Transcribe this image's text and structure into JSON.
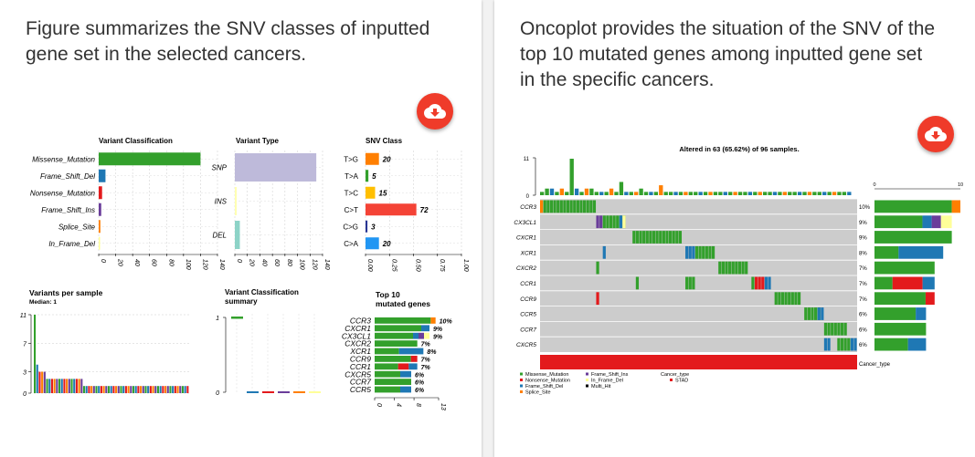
{
  "left_card": {
    "description": "Figure summarizes the SNV classes of inputted gene set in the selected cancers.",
    "download_icon": "cloud-download-icon",
    "summary": {
      "variant_classification": {
        "title": "Variant Classification",
        "categories": [
          "Missense_Mutation",
          "Frame_Shift_Del",
          "Nonsense_Mutation",
          "Frame_Shift_Ins",
          "Splice_Site",
          "In_Frame_Del"
        ],
        "values": [
          120,
          8,
          4,
          3,
          2,
          1
        ],
        "colors": [
          "#33a02c",
          "#1f78b4",
          "#e31a1c",
          "#6a3d9a",
          "#ff7f00",
          "#ffff99"
        ],
        "ticks": [
          "0",
          "20",
          "40",
          "60",
          "80",
          "100",
          "120",
          "140"
        ]
      },
      "variant_type": {
        "title": "Variant Type",
        "categories": [
          "SNP",
          "INS",
          "DEL"
        ],
        "values": [
          130,
          3,
          8
        ],
        "colors": [
          "#bebada",
          "#ffffb3",
          "#8dd3c7"
        ],
        "ticks": [
          "0",
          "20",
          "40",
          "60",
          "80",
          "100",
          "120",
          "140"
        ]
      },
      "snv_class": {
        "title": "SNV Class",
        "categories": [
          "T>G",
          "T>A",
          "T>C",
          "C>T",
          "C>G",
          "C>A"
        ],
        "values": [
          20,
          5,
          15,
          72,
          3,
          20
        ],
        "fractions": [
          0.14,
          0.03,
          0.1,
          0.53,
          0.02,
          0.14
        ],
        "colors": [
          "#ff7f00",
          "#33a02c",
          "#ffbf00",
          "#f44336",
          "#283593",
          "#2196f3"
        ],
        "ticks": [
          "0.00",
          "0.25",
          "0.50",
          "0.75",
          "1.00"
        ]
      },
      "variants_per_sample": {
        "title": "Variants per sample",
        "subtitle": "Median: 1",
        "ticks": [
          "0",
          "3",
          "7",
          "11"
        ],
        "values": [
          11,
          4,
          3,
          3,
          3,
          2,
          2,
          2,
          2,
          2,
          2,
          2,
          2,
          2,
          2,
          2,
          2,
          2,
          2,
          2,
          1,
          1,
          1,
          1,
          1,
          1,
          1,
          1,
          1,
          1,
          1,
          1,
          1,
          1,
          1,
          1,
          1,
          1,
          1,
          1,
          1,
          1,
          1,
          1,
          1,
          1,
          1,
          1,
          1,
          1,
          1,
          1,
          1,
          1,
          1,
          1,
          1,
          1,
          1,
          1,
          1,
          1,
          1
        ]
      },
      "variant_classification_summary": {
        "title_line1": "Variant Classification",
        "title_line2": "summary",
        "ticks": [
          "0",
          "1"
        ],
        "values": [
          1,
          0,
          0,
          0,
          0,
          0
        ],
        "colors": [
          "#33a02c",
          "#1f78b4",
          "#e31a1c",
          "#6a3d9a",
          "#ff7f00",
          "#ffff99"
        ]
      },
      "top10": {
        "title_line1": "Top 10",
        "title_line2": "mutated genes",
        "genes": [
          "CCR3",
          "CXCR1",
          "CX3CL1",
          "CXCR2",
          "XCR1",
          "CCR9",
          "CCR1",
          "CXCR5",
          "CCR7",
          "CCR5"
        ],
        "percents": [
          "10%",
          "9%",
          "9%",
          "7%",
          "8%",
          "7%",
          "7%",
          "6%",
          "6%",
          "6%"
        ],
        "values": [
          10,
          9,
          9,
          7,
          8,
          7,
          7,
          6,
          6,
          6
        ],
        "ticks": [
          "0",
          "4",
          "8",
          "13"
        ]
      }
    }
  },
  "right_card": {
    "description": "Oncoplot provides the situation of the SNV of the top 10 mutated genes among inputted gene set in the specific cancers.",
    "download_icon": "cloud-download-icon",
    "oncoplot": {
      "title": "Altered in 63 (65.62%) of 96 samples.",
      "top_ticks": [
        "0",
        "11"
      ],
      "right_ticks": [
        "0",
        "10"
      ],
      "genes": [
        "CCR3",
        "CX3CL1",
        "CXCR1",
        "XCR1",
        "CXCR2",
        "CCR1",
        "CCR9",
        "CCR5",
        "CCR7",
        "CXCR5"
      ],
      "percents": [
        "10%",
        "9%",
        "9%",
        "8%",
        "7%",
        "7%",
        "7%",
        "6%",
        "6%",
        "6%"
      ],
      "values": [
        10,
        9,
        9,
        8,
        7,
        7,
        7,
        6,
        6,
        6
      ],
      "cancer_type_label": "Cancer_type",
      "legend_variants": [
        "Missense_Mutation",
        "Nonsense_Mutation",
        "Frame_Shift_Del",
        "Splice_Site",
        "Frame_Shift_Ins",
        "In_Frame_Del",
        "Multi_Hit"
      ],
      "legend_colors": [
        "#33a02c",
        "#e31a1c",
        "#1f78b4",
        "#ff7f00",
        "#6a3d9a",
        "#ffff99",
        "#000000"
      ],
      "legend_cancer_title": "Cancer_type",
      "legend_cancer": "STAD",
      "legend_cancer_color": "#e31a1c"
    }
  },
  "colors": {
    "missense": "#33a02c",
    "frame_shift_del": "#1f78b4",
    "nonsense": "#e31a1c",
    "frame_shift_ins": "#6a3d9a",
    "splice_site": "#ff7f00",
    "in_frame_del": "#ffff99",
    "grid_bg": "#cccccc",
    "button": "#ef3b2a"
  }
}
